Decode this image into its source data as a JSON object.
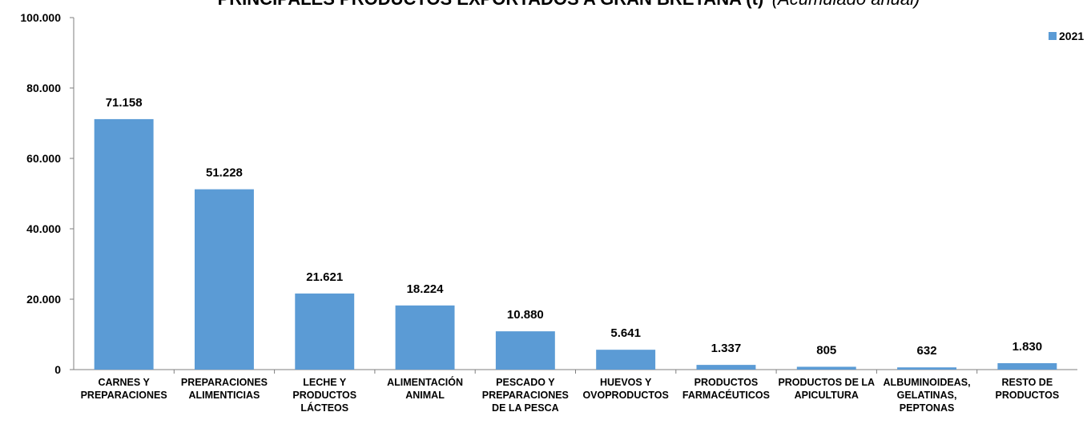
{
  "chart_data": {
    "type": "bar",
    "title": "PRINCIPALES PRODUCTOS EXPORTADOS A GRAN BRETAÑA (t)",
    "subtitle": "(Acumulado anual)",
    "categories": [
      [
        "CARNES Y",
        "PREPARACIONES"
      ],
      [
        "PREPARACIONES",
        "ALIMENTICIAS"
      ],
      [
        "LECHE Y",
        "PRODUCTOS",
        "LÁCTEOS"
      ],
      [
        "ALIMENTACIÓN",
        "ANIMAL"
      ],
      [
        "PESCADO Y",
        "PREPARACIONES",
        "DE LA PESCA"
      ],
      [
        "HUEVOS Y",
        "OVOPRODUCTOS"
      ],
      [
        "PRODUCTOS",
        "FARMACÉUTICOS"
      ],
      [
        "PRODUCTOS DE LA",
        "APICULTURA"
      ],
      [
        "ALBUMINOIDEAS,",
        "GELATINAS,",
        "PEPTONAS"
      ],
      [
        "RESTO DE",
        "PRODUCTOS"
      ]
    ],
    "series": [
      {
        "name": "2021",
        "values": [
          71158,
          51228,
          21621,
          18224,
          10880,
          5641,
          1337,
          805,
          632,
          1830
        ],
        "labels": [
          "71.158",
          "51.228",
          "21.621",
          "18.224",
          "10.880",
          "5.641",
          "1.337",
          "805",
          "632",
          "1.830"
        ]
      }
    ],
    "ylim": [
      0,
      100000
    ],
    "yticks": [
      0,
      20000,
      40000,
      60000,
      80000,
      100000
    ],
    "ytick_labels": [
      "0",
      "20.000",
      "40.000",
      "60.000",
      "80.000",
      "100.000"
    ],
    "grid": false,
    "legend": "top-right",
    "colors": {
      "bar": "#5B9BD5",
      "axis": "#7f7f7f"
    }
  }
}
